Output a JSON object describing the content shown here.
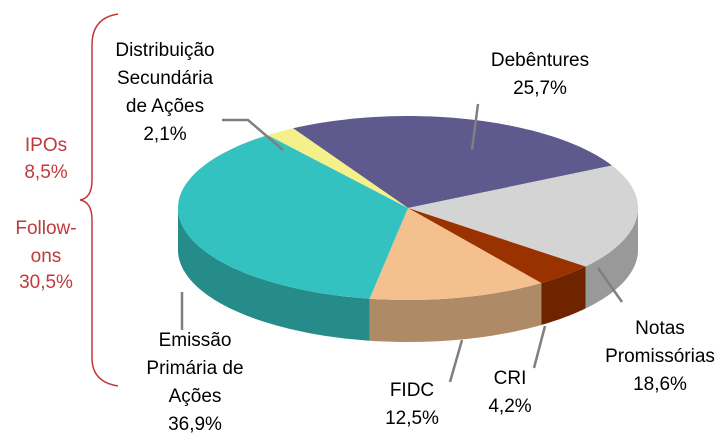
{
  "chart_data": {
    "type": "pie3d",
    "categories": [
      "Debêntures",
      "Notas\nPromissórias",
      "CRI",
      "FIDC",
      "Emissão\nPrimária de\nAções",
      "Distribuição\nSecundária\nde Ações"
    ],
    "values": [
      25.7,
      18.6,
      4.2,
      12.5,
      36.9,
      2.1
    ],
    "value_labels": [
      "25,7%",
      "18,6%",
      "4,2%",
      "12,5%",
      "36,9%",
      "2,1%"
    ],
    "colors": [
      "#5f5a8e",
      "#d4d4d4",
      "#9a3200",
      "#f3c08e",
      "#33c2c0",
      "#f4f08a"
    ],
    "annotations": [
      {
        "text": "IPOs",
        "value": 8.5,
        "label": "8,5%"
      },
      {
        "text": "Follow-\nons",
        "value": 30.5,
        "label": "30,5%"
      }
    ]
  }
}
